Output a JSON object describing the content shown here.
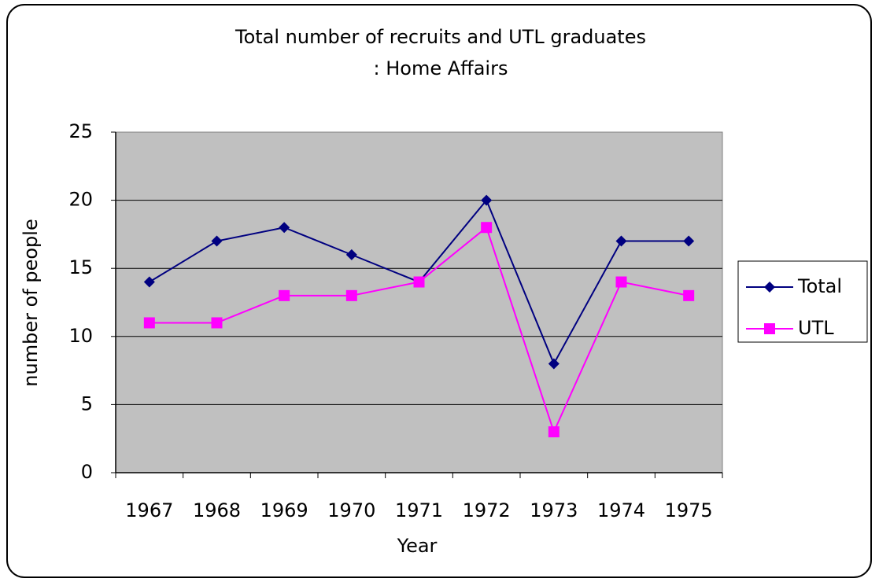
{
  "chart_data": {
    "type": "line",
    "title": "Total number of recruits and UTL graduates",
    "subtitle": ": Home Affairs",
    "x_label": "Year",
    "y_label": "number of people",
    "categories": [
      "1967",
      "1968",
      "1969",
      "1970",
      "1971",
      "1972",
      "1973",
      "1974",
      "1975"
    ],
    "series": [
      {
        "name": "Total",
        "color": "#000080",
        "marker": "diamond",
        "values": [
          14,
          17,
          18,
          16,
          14,
          20,
          8,
          17,
          17
        ]
      },
      {
        "name": "UTL",
        "color": "#ff00ff",
        "marker": "square",
        "values": [
          11,
          11,
          13,
          13,
          14,
          18,
          3,
          14,
          13
        ]
      }
    ],
    "ylim": [
      0,
      25
    ],
    "yticks": [
      0,
      5,
      10,
      15,
      20,
      25
    ],
    "grid": true,
    "legend": "right",
    "plot_background": "#c0c0c0"
  }
}
